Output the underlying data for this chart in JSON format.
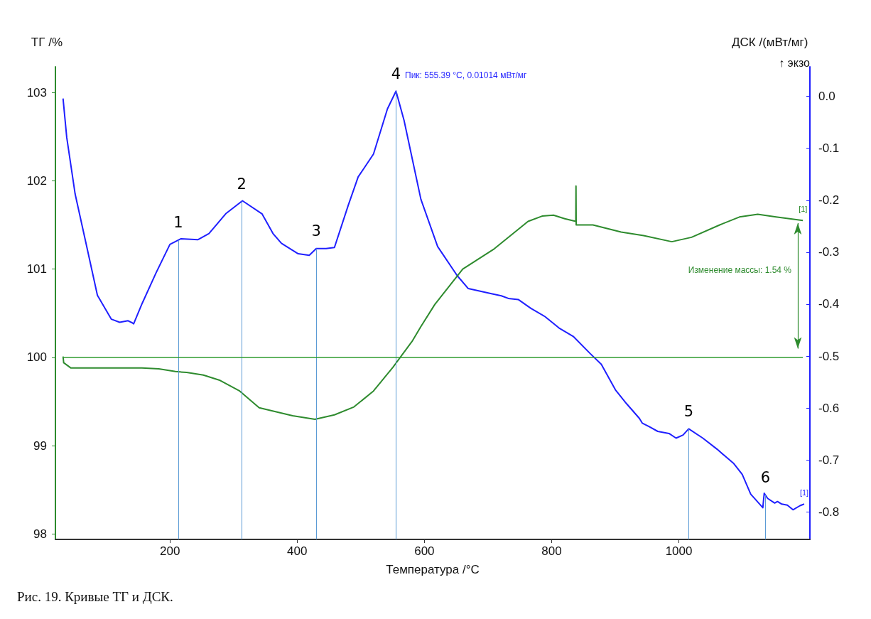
{
  "chart_data": {
    "type": "line",
    "xlabel": "Температура /°C",
    "ylabel": "ТГ /%",
    "y2label": "ДСК /(мВт/мг)",
    "xlim": [
      20,
      1206
    ],
    "xticks": [
      200,
      400,
      600,
      800,
      1000
    ],
    "ylim": [
      97.94,
      103.29
    ],
    "yticks": [
      98,
      99,
      100,
      101,
      102,
      103
    ],
    "y2lim": [
      -0.853,
      0.057
    ],
    "y2ticks": [
      {
        "value": 0,
        "label": "0.0"
      },
      -0.1,
      -0.2,
      -0.3,
      -0.4,
      -0.5,
      -0.6,
      -0.7,
      -0.8
    ],
    "grid": false,
    "legend": false,
    "marker": "none",
    "line_style": "solid",
    "series": [
      {
        "name": "[1]",
        "color": "#1f1fff",
        "axis": "y2",
        "x": [
          32,
          37.8,
          51,
          68.5,
          86,
          108,
          121,
          134.2,
          140.8,
          143,
          156.2,
          178.1,
          200,
          217.5,
          243.8,
          261.4,
          287.7,
          314,
          344.7,
          362,
          375.3,
          401.6,
          419,
          430,
          445.5,
          458.6,
          480.5,
          495.9,
          520,
          541.9,
          555.39,
          568,
          594.5,
          620.8,
          651.5,
          669,
          705.4,
          721,
          732,
          747.5,
          767.4,
          789.6,
          811.7,
          833.9,
          860.5,
          878.2,
          900.3,
          918,
          938,
          942.4,
          953.5,
          966.8,
          984.5,
          995.6,
          1006.6,
          1015.5,
          1037.7,
          1059.8,
          1073,
          1086.4,
          1099.7,
          1113,
          1121.8,
          1132,
          1134.2,
          1139.5,
          1150.6,
          1155,
          1161.7,
          1170.5,
          1179.4,
          1190.5,
          1197
        ],
        "values": [
          -0.004,
          -0.079,
          -0.188,
          -0.285,
          -0.383,
          -0.429,
          -0.435,
          -0.432,
          -0.436,
          -0.438,
          -0.399,
          -0.34,
          -0.285,
          -0.274,
          -0.276,
          -0.264,
          -0.226,
          -0.201,
          -0.226,
          -0.264,
          -0.283,
          -0.303,
          -0.306,
          -0.293,
          -0.293,
          -0.291,
          -0.209,
          -0.155,
          -0.111,
          -0.024,
          0.01014,
          -0.046,
          -0.198,
          -0.289,
          -0.345,
          -0.37,
          -0.38,
          -0.384,
          -0.389,
          -0.391,
          -0.408,
          -0.424,
          -0.446,
          -0.462,
          -0.495,
          -0.516,
          -0.565,
          -0.592,
          -0.62,
          -0.629,
          -0.636,
          -0.645,
          -0.649,
          -0.658,
          -0.652,
          -0.64,
          -0.658,
          -0.679,
          -0.693,
          -0.707,
          -0.728,
          -0.766,
          -0.778,
          -0.792,
          -0.764,
          -0.774,
          -0.783,
          -0.78,
          -0.785,
          -0.787,
          -0.796,
          -0.788,
          -0.785
        ]
      },
      {
        "name": "[1]",
        "color": "#2e8b2e",
        "x": [
          32,
          33,
          44.4,
          68.5,
          112.3,
          156,
          182.5,
          208.8,
          226.3,
          252.6,
          278.9,
          309.6,
          340.3,
          357.8,
          392.9,
          428,
          458.6,
          489.3,
          520,
          550.7,
          581.4,
          594.5,
          616.4,
          660.3,
          709.9,
          763,
          785,
          803,
          820.6,
          838,
          838.3,
          838.6,
          864.9,
          909.2,
          944.6,
          988.9,
          1020,
          1064.2,
          1095.2,
          1124,
          1152.8,
          1195
        ],
        "values": [
          100.01,
          99.94,
          99.88,
          99.88,
          99.88,
          99.88,
          99.87,
          99.84,
          99.83,
          99.8,
          99.74,
          99.62,
          99.43,
          99.4,
          99.34,
          99.3,
          99.35,
          99.44,
          99.62,
          99.89,
          100.19,
          100.35,
          100.6,
          101.0,
          101.23,
          101.54,
          101.6,
          101.61,
          101.57,
          101.54,
          101.94,
          101.5,
          101.5,
          101.42,
          101.38,
          101.31,
          101.36,
          101.5,
          101.59,
          101.62,
          101.59,
          101.55
        ]
      }
    ],
    "ref_lines": [
      {
        "axis": "y",
        "value": 100,
        "color": "#2e9b2e"
      },
      {
        "axis": "x",
        "value": 213,
        "color": "#5b9bd5"
      },
      {
        "axis": "x",
        "value": 312.9,
        "color": "#5b9bd5"
      },
      {
        "axis": "x",
        "value": 430,
        "color": "#5b9bd5"
      },
      {
        "axis": "x",
        "value": 555.39,
        "color": "#5b9bd5"
      },
      {
        "axis": "x",
        "value": 1015.5,
        "color": "#5b9bd5"
      },
      {
        "axis": "x",
        "value": 1136,
        "color": "#5b9bd5"
      }
    ],
    "annotations": [
      "1",
      "2",
      "3",
      "4",
      "5",
      "6",
      "Пик: 555.39 °C, 0.01014 мВт/мг",
      "Изменение массы: 1.54 %",
      "↑ экзо",
      "Рис. 19. Кривые ТГ и ДСК."
    ]
  }
}
